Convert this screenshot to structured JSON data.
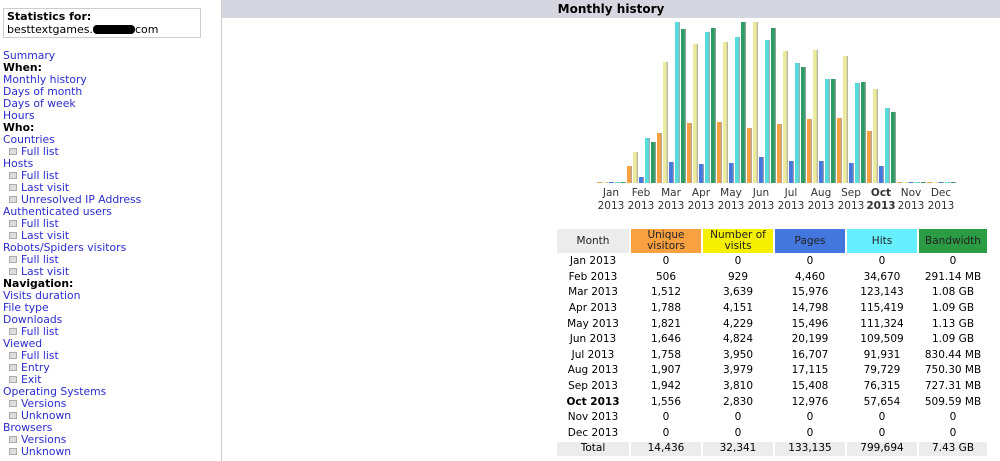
{
  "sidebar": {
    "stats_label": "Statistics for:",
    "site": "besttextgames.",
    "site_suffix": "com",
    "items": [
      {
        "t": "Summary",
        "k": "link"
      },
      {
        "t": "When:",
        "k": "head"
      },
      {
        "t": "Monthly history",
        "k": "link"
      },
      {
        "t": "Days of month",
        "k": "link"
      },
      {
        "t": "Days of week",
        "k": "link"
      },
      {
        "t": "Hours",
        "k": "link"
      },
      {
        "t": "Who:",
        "k": "head"
      },
      {
        "t": "Countries",
        "k": "link"
      },
      {
        "t": "Full list",
        "k": "sub"
      },
      {
        "t": "Hosts",
        "k": "link"
      },
      {
        "t": "Full list",
        "k": "sub"
      },
      {
        "t": "Last visit",
        "k": "sub"
      },
      {
        "t": "Unresolved IP Address",
        "k": "sub"
      },
      {
        "t": "Authenticated users",
        "k": "link"
      },
      {
        "t": "Full list",
        "k": "sub"
      },
      {
        "t": "Last visit",
        "k": "sub"
      },
      {
        "t": "Robots/Spiders visitors",
        "k": "link"
      },
      {
        "t": "Full list",
        "k": "sub"
      },
      {
        "t": "Last visit",
        "k": "sub"
      },
      {
        "t": "Navigation:",
        "k": "head"
      },
      {
        "t": "Visits duration",
        "k": "link"
      },
      {
        "t": "File type",
        "k": "link"
      },
      {
        "t": "Downloads",
        "k": "link"
      },
      {
        "t": "Full list",
        "k": "sub"
      },
      {
        "t": "Viewed",
        "k": "link"
      },
      {
        "t": "Full list",
        "k": "sub"
      },
      {
        "t": "Entry",
        "k": "sub"
      },
      {
        "t": "Exit",
        "k": "sub"
      },
      {
        "t": "Operating Systems",
        "k": "link"
      },
      {
        "t": "Versions",
        "k": "sub"
      },
      {
        "t": "Unknown",
        "k": "sub"
      },
      {
        "t": "Browsers",
        "k": "link"
      },
      {
        "t": "Versions",
        "k": "sub"
      },
      {
        "t": "Unknown",
        "k": "sub"
      }
    ]
  },
  "main": {
    "title": "Monthly history"
  },
  "colors": {
    "visitors": "#f9a040",
    "visits": "#ecea9c",
    "pages": "#4477dd",
    "hits": "#55dddd",
    "bandwidth": "#2c9c64"
  },
  "chart_data": {
    "type": "bar",
    "title": "Monthly history",
    "categories": [
      "Jan",
      "Feb",
      "Mar",
      "Apr",
      "May",
      "Jun",
      "Jul",
      "Aug",
      "Sep",
      "Oct",
      "Nov",
      "Dec"
    ],
    "year": "2013",
    "current": "Oct",
    "series": [
      {
        "name": "Unique visitors",
        "values": [
          0,
          506,
          1512,
          1788,
          1821,
          1646,
          1758,
          1907,
          1942,
          1556,
          0,
          0
        ]
      },
      {
        "name": "Number of visits",
        "values": [
          0,
          929,
          3639,
          4151,
          4229,
          4824,
          3950,
          3979,
          3810,
          2830,
          0,
          0
        ]
      },
      {
        "name": "Pages",
        "values": [
          0,
          4460,
          15976,
          14798,
          15496,
          20199,
          16707,
          17115,
          15408,
          12976,
          0,
          0
        ]
      },
      {
        "name": "Hits",
        "values": [
          0,
          34670,
          123143,
          115419,
          111324,
          109509,
          91931,
          79729,
          76315,
          57654,
          0,
          0
        ]
      },
      {
        "name": "Bandwidth (MB)",
        "values": [
          0,
          291.14,
          1105.9,
          1116.2,
          1157.1,
          1116.2,
          830.44,
          750.3,
          727.31,
          509.59,
          0,
          0
        ]
      }
    ]
  },
  "table": {
    "headers": [
      "Month",
      "Unique visitors",
      "Number of visits",
      "Pages",
      "Hits",
      "Bandwidth"
    ],
    "rows": [
      [
        "Jan 2013",
        "0",
        "0",
        "0",
        "0",
        "0"
      ],
      [
        "Feb 2013",
        "506",
        "929",
        "4,460",
        "34,670",
        "291.14 MB"
      ],
      [
        "Mar 2013",
        "1,512",
        "3,639",
        "15,976",
        "123,143",
        "1.08 GB"
      ],
      [
        "Apr 2013",
        "1,788",
        "4,151",
        "14,798",
        "115,419",
        "1.09 GB"
      ],
      [
        "May 2013",
        "1,821",
        "4,229",
        "15,496",
        "111,324",
        "1.13 GB"
      ],
      [
        "Jun 2013",
        "1,646",
        "4,824",
        "20,199",
        "109,509",
        "1.09 GB"
      ],
      [
        "Jul 2013",
        "1,758",
        "3,950",
        "16,707",
        "91,931",
        "830.44 MB"
      ],
      [
        "Aug 2013",
        "1,907",
        "3,979",
        "17,115",
        "79,729",
        "750.30 MB"
      ],
      [
        "Sep 2013",
        "1,942",
        "3,810",
        "15,408",
        "76,315",
        "727.31 MB"
      ],
      [
        "Oct 2013",
        "1,556",
        "2,830",
        "12,976",
        "57,654",
        "509.59 MB"
      ],
      [
        "Nov 2013",
        "0",
        "0",
        "0",
        "0",
        "0"
      ],
      [
        "Dec 2013",
        "0",
        "0",
        "0",
        "0",
        "0"
      ]
    ],
    "total": [
      "Total",
      "14,436",
      "32,341",
      "133,135",
      "799,694",
      "7.43 GB"
    ]
  }
}
